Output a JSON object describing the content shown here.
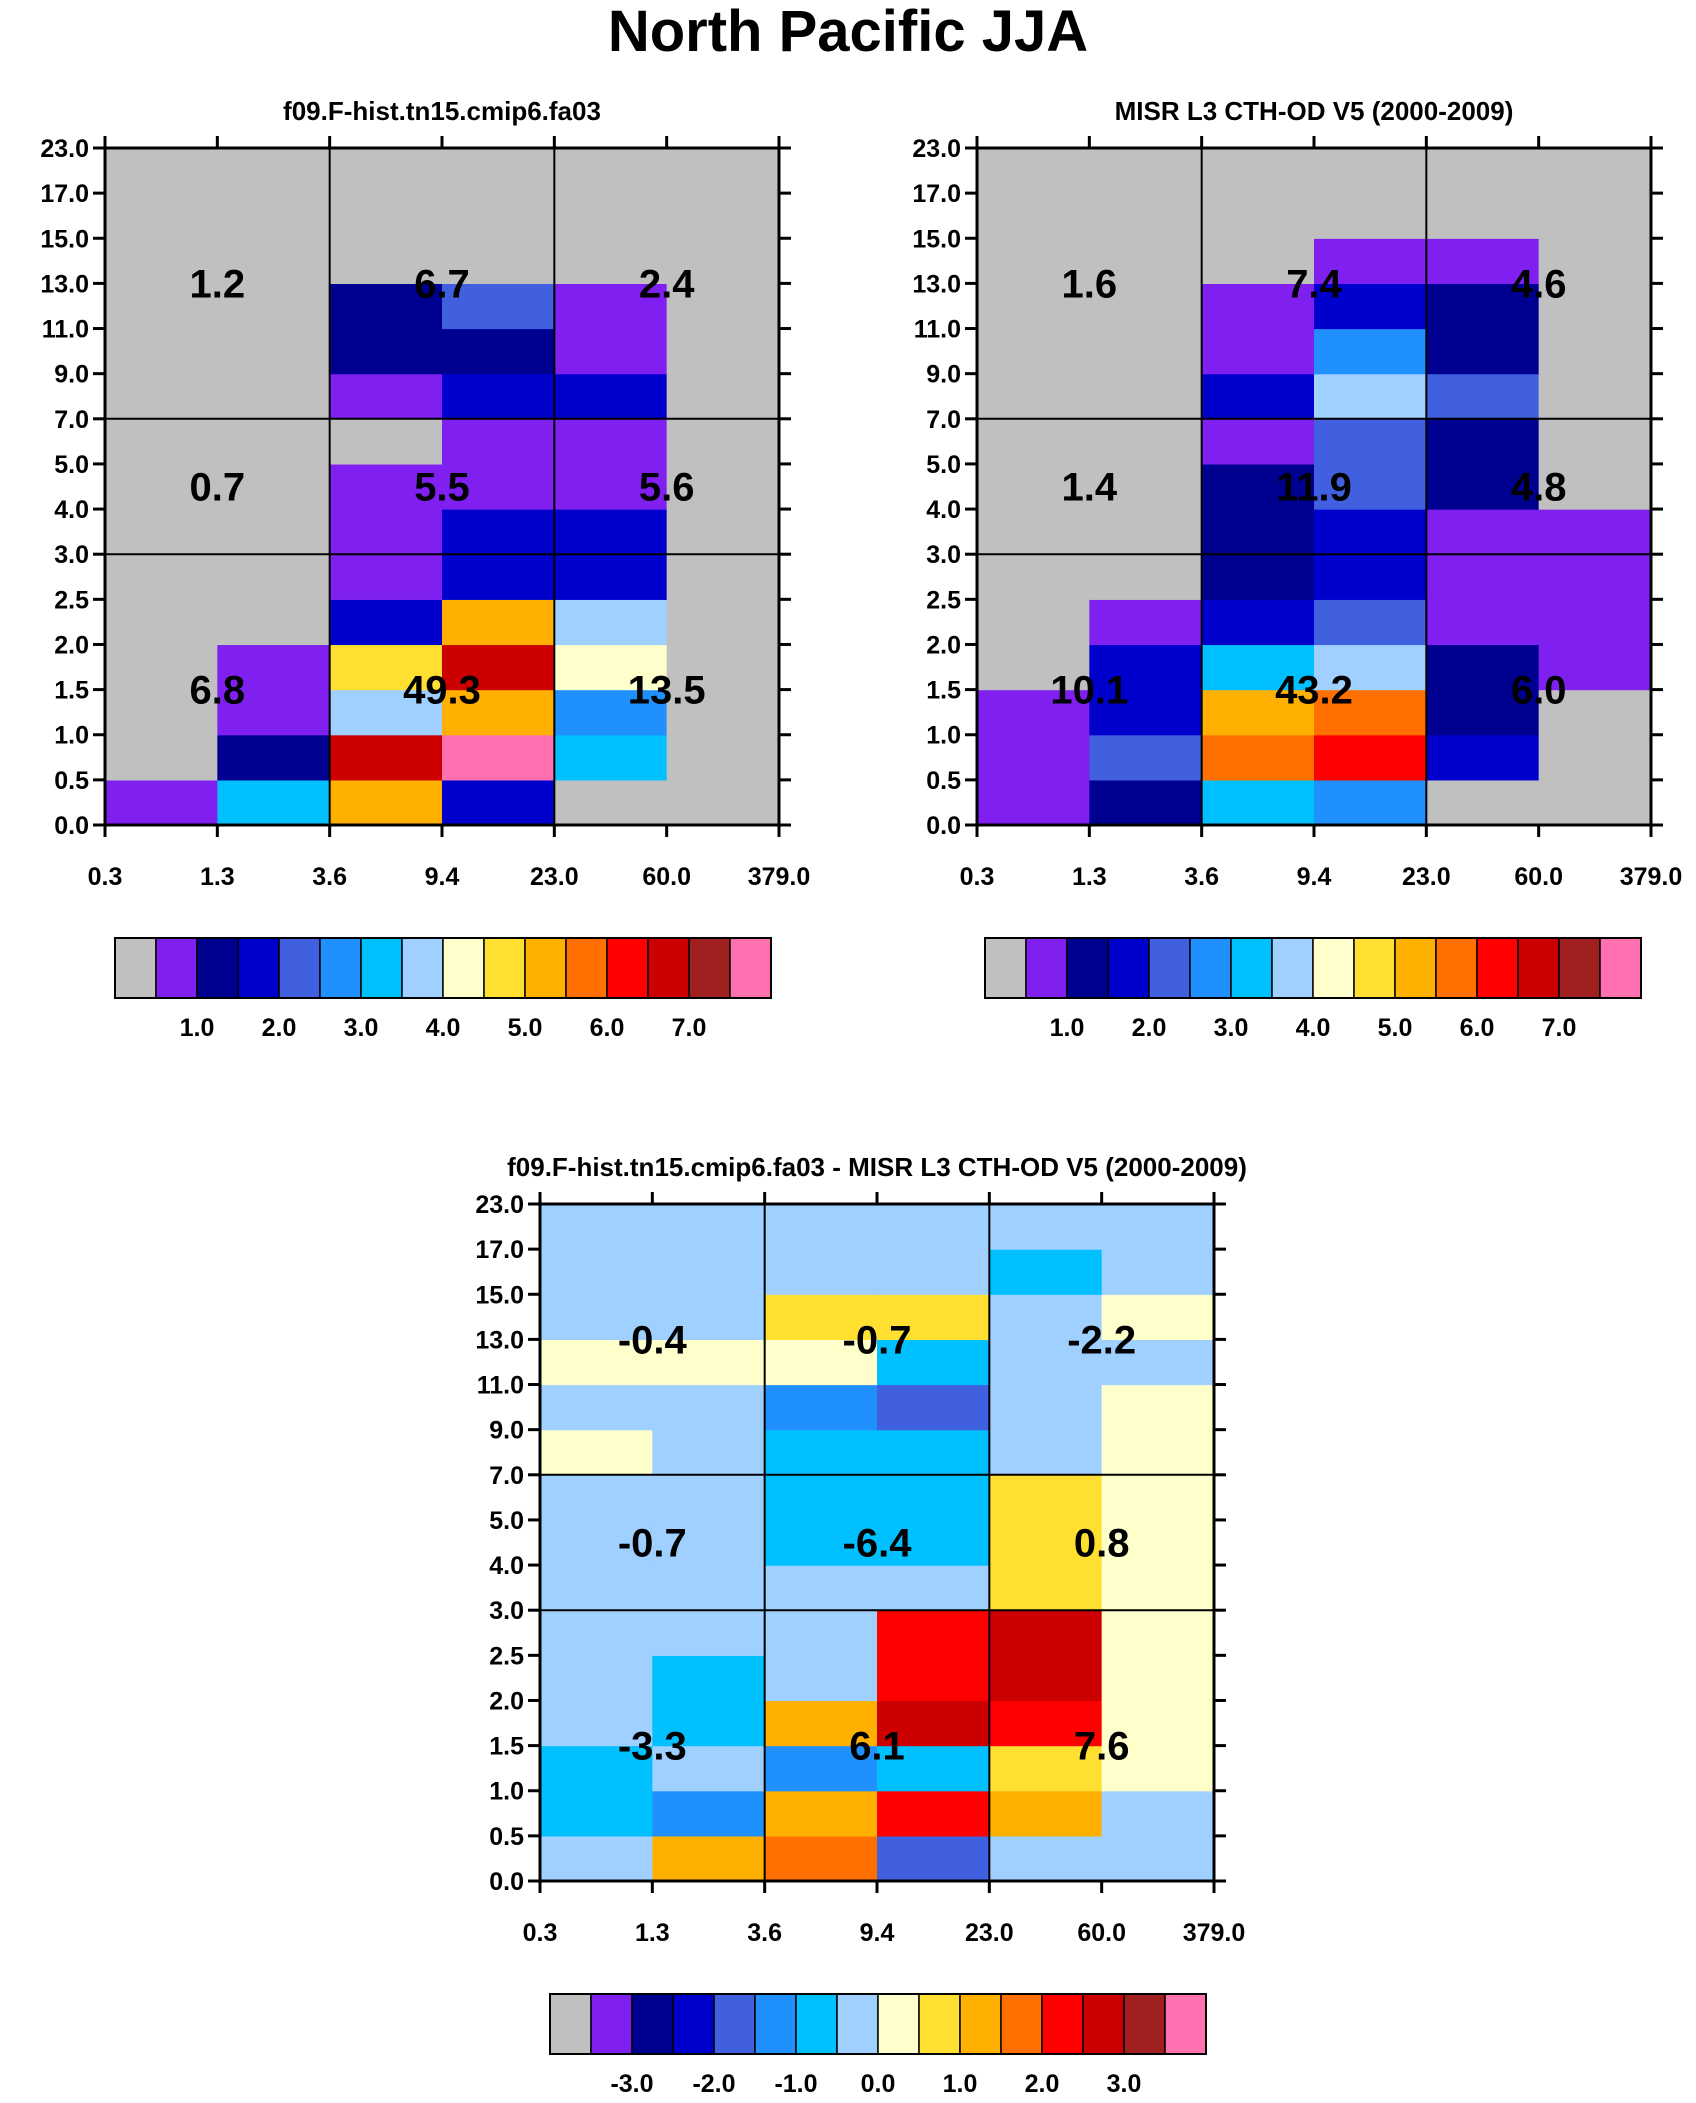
{
  "title": "North Pacific JJA",
  "chart_data": {
    "type": "heatmap",
    "x_tick_labels": [
      "0.3",
      "1.3",
      "3.6",
      "9.4",
      "23.0",
      "60.0",
      "379.0"
    ],
    "y_tick_labels": [
      "0.0",
      "0.5",
      "1.0",
      "1.5",
      "2.0",
      "2.5",
      "3.0",
      "4.0",
      "5.0",
      "7.0",
      "9.0",
      "11.0",
      "13.0",
      "15.0",
      "17.0",
      "23.0"
    ],
    "panels": [
      {
        "id": "model",
        "title": "f09.F-hist.tn15.cmip6.fa03",
        "cells": [
          [
            1,
            6,
            10,
            3,
            0,
            0
          ],
          [
            0,
            2,
            13,
            15,
            6,
            0
          ],
          [
            0,
            1,
            7,
            10,
            5,
            0
          ],
          [
            0,
            1,
            9,
            13,
            8,
            0
          ],
          [
            0,
            0,
            3,
            10,
            7,
            0
          ],
          [
            0,
            0,
            1,
            3,
            3,
            0
          ],
          [
            0,
            0,
            1,
            3,
            3,
            0
          ],
          [
            0,
            0,
            1,
            1,
            1,
            0
          ],
          [
            0,
            0,
            0,
            1,
            1,
            0
          ],
          [
            0,
            0,
            1,
            3,
            3,
            0
          ],
          [
            0,
            0,
            2,
            2,
            1,
            0
          ],
          [
            0,
            0,
            2,
            4,
            1,
            0
          ],
          [
            0,
            0,
            0,
            0,
            0,
            0
          ],
          [
            0,
            0,
            0,
            0,
            0,
            0
          ],
          [
            0,
            0,
            0,
            0,
            0,
            0
          ]
        ],
        "group_totals": [
          {
            "col": 0,
            "row": 0,
            "text": "6.8"
          },
          {
            "col": 1,
            "row": 0,
            "text": "49.3"
          },
          {
            "col": 2,
            "row": 0,
            "text": "13.5"
          },
          {
            "col": 0,
            "row": 1,
            "text": "0.7"
          },
          {
            "col": 1,
            "row": 1,
            "text": "5.5"
          },
          {
            "col": 2,
            "row": 1,
            "text": "5.6"
          },
          {
            "col": 0,
            "row": 2,
            "text": "1.2"
          },
          {
            "col": 1,
            "row": 2,
            "text": "6.7"
          },
          {
            "col": 2,
            "row": 2,
            "text": "2.4"
          }
        ],
        "colorbar_labels": [
          "1.0",
          "2.0",
          "3.0",
          "4.0",
          "5.0",
          "6.0",
          "7.0"
        ]
      },
      {
        "id": "obs",
        "title": "MISR L3 CTH-OD V5 (2000-2009)",
        "cells": [
          [
            1,
            2,
            6,
            5,
            0,
            0
          ],
          [
            1,
            4,
            11,
            12,
            3,
            0
          ],
          [
            1,
            3,
            10,
            11,
            2,
            0
          ],
          [
            0,
            3,
            6,
            7,
            2,
            1
          ],
          [
            0,
            1,
            3,
            4,
            1,
            1
          ],
          [
            0,
            0,
            2,
            3,
            1,
            1
          ],
          [
            0,
            0,
            2,
            3,
            1,
            1
          ],
          [
            0,
            0,
            2,
            4,
            2,
            0
          ],
          [
            0,
            0,
            1,
            4,
            2,
            0
          ],
          [
            0,
            0,
            3,
            7,
            4,
            0
          ],
          [
            0,
            0,
            1,
            5,
            2,
            0
          ],
          [
            0,
            0,
            1,
            3,
            2,
            0
          ],
          [
            0,
            0,
            0,
            1,
            1,
            0
          ],
          [
            0,
            0,
            0,
            0,
            0,
            0
          ],
          [
            0,
            0,
            0,
            0,
            0,
            0
          ]
        ],
        "group_totals": [
          {
            "col": 0,
            "row": 0,
            "text": "10.1"
          },
          {
            "col": 1,
            "row": 0,
            "text": "43.2"
          },
          {
            "col": 2,
            "row": 0,
            "text": "6.0"
          },
          {
            "col": 0,
            "row": 1,
            "text": "1.4"
          },
          {
            "col": 1,
            "row": 1,
            "text": "11.9"
          },
          {
            "col": 2,
            "row": 1,
            "text": "4.8"
          },
          {
            "col": 0,
            "row": 2,
            "text": "1.6"
          },
          {
            "col": 1,
            "row": 2,
            "text": "7.4"
          },
          {
            "col": 2,
            "row": 2,
            "text": "4.6"
          }
        ],
        "colorbar_labels": [
          "1.0",
          "2.0",
          "3.0",
          "4.0",
          "5.0",
          "6.0",
          "7.0"
        ]
      },
      {
        "id": "diff",
        "title": "f09.F-hist.tn15.cmip6.fa03 - MISR L3 CTH-OD V5 (2000-2009)",
        "cells": [
          [
            7,
            10,
            11,
            4,
            7,
            7
          ],
          [
            6,
            5,
            10,
            12,
            10,
            7
          ],
          [
            6,
            7,
            5,
            6,
            9,
            8
          ],
          [
            7,
            6,
            10,
            13,
            12,
            8
          ],
          [
            7,
            6,
            7,
            12,
            13,
            8
          ],
          [
            7,
            7,
            7,
            12,
            13,
            8
          ],
          [
            7,
            7,
            7,
            7,
            9,
            8
          ],
          [
            7,
            7,
            6,
            6,
            9,
            8
          ],
          [
            7,
            7,
            6,
            6,
            9,
            8
          ],
          [
            8,
            7,
            6,
            6,
            7,
            8
          ],
          [
            7,
            7,
            5,
            4,
            7,
            8
          ],
          [
            8,
            8,
            8,
            6,
            7,
            7
          ],
          [
            7,
            7,
            9,
            9,
            7,
            8
          ],
          [
            7,
            7,
            7,
            7,
            6,
            7
          ],
          [
            7,
            7,
            7,
            7,
            7,
            7
          ]
        ],
        "group_totals": [
          {
            "col": 0,
            "row": 0,
            "text": "-3.3"
          },
          {
            "col": 1,
            "row": 0,
            "text": "6.1"
          },
          {
            "col": 2,
            "row": 0,
            "text": "7.6"
          },
          {
            "col": 0,
            "row": 1,
            "text": "-0.7"
          },
          {
            "col": 1,
            "row": 1,
            "text": "-6.4"
          },
          {
            "col": 2,
            "row": 1,
            "text": "0.8"
          },
          {
            "col": 0,
            "row": 2,
            "text": "-0.4"
          },
          {
            "col": 1,
            "row": 2,
            "text": "-0.7"
          },
          {
            "col": 2,
            "row": 2,
            "text": "-2.2"
          }
        ],
        "colorbar_labels": [
          "-3.0",
          "-2.0",
          "-1.0",
          "0.0",
          "1.0",
          "2.0",
          "3.0"
        ]
      }
    ],
    "colormap": [
      "#c0c0c0",
      "#8020f0",
      "#000090",
      "#0000cc",
      "#4060e0",
      "#2090ff",
      "#00c0ff",
      "#a0d0ff",
      "#ffffcc",
      "#ffe030",
      "#ffb000",
      "#ff7000",
      "#ff0000",
      "#cc0000",
      "#a02020",
      "#ff70b0"
    ]
  }
}
